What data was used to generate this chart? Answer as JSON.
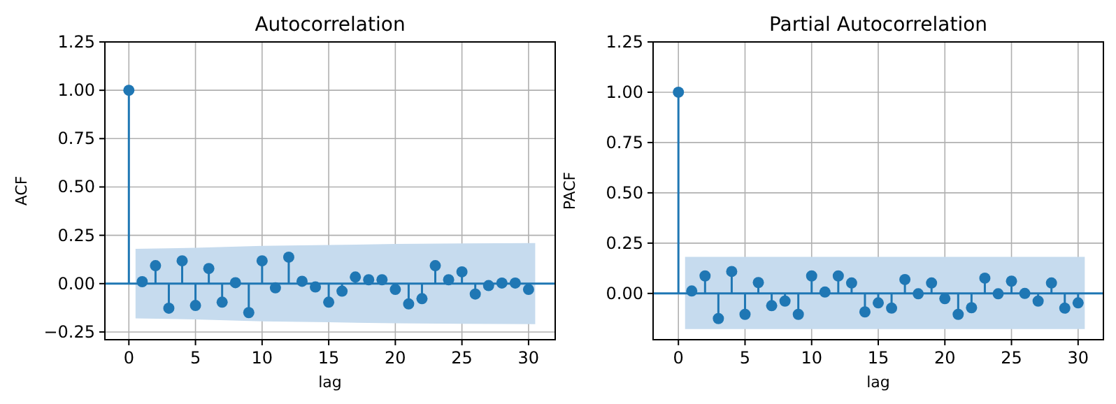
{
  "chart_data": [
    {
      "type": "lollipop",
      "title": "Autocorrelation",
      "xlabel": "lag",
      "ylabel": "ACF",
      "xlim": [
        -1.8,
        32
      ],
      "ylim": [
        -0.29,
        1.25
      ],
      "xticks": [
        0,
        5,
        10,
        15,
        20,
        25,
        30
      ],
      "yticks": [
        {
          "value": -0.25,
          "label": "−0.25"
        },
        {
          "value": 0,
          "label": "0.00"
        },
        {
          "value": 0.25,
          "label": "0.25"
        },
        {
          "value": 0.5,
          "label": "0.50"
        },
        {
          "value": 0.75,
          "label": "0.75"
        },
        {
          "value": 1,
          "label": "1.00"
        },
        {
          "value": 1.25,
          "label": "1.25"
        }
      ],
      "grid": true,
      "marker": "circle",
      "ref_lines": [
        {
          "axis": "y",
          "value": 0,
          "color": "#1f77b4"
        }
      ],
      "series": [
        {
          "type": "area",
          "color": "#c6dbee",
          "x": [
            0.5,
            5,
            10,
            15,
            20,
            25,
            30.5
          ],
          "values": [
            null,
            null,
            null,
            null,
            null,
            null,
            null
          ],
          "lower": [
            -0.18,
            -0.185,
            -0.195,
            -0.2,
            -0.205,
            -0.208,
            -0.21
          ],
          "upper": [
            0.18,
            0.185,
            0.195,
            0.2,
            0.205,
            0.208,
            0.21
          ]
        },
        {
          "color": "#1f77b4",
          "x": [
            0,
            1,
            2,
            3,
            4,
            5,
            6,
            7,
            8,
            9,
            10,
            11,
            12,
            13,
            14,
            15,
            16,
            17,
            18,
            19,
            20,
            21,
            22,
            23,
            24,
            25,
            26,
            27,
            28,
            29,
            30
          ],
          "values": [
            1.0,
            0.01,
            0.093,
            -0.127,
            0.118,
            -0.113,
            0.078,
            -0.096,
            0.005,
            -0.15,
            0.118,
            -0.022,
            0.137,
            0.012,
            -0.017,
            -0.096,
            -0.039,
            0.034,
            0.02,
            0.02,
            -0.03,
            -0.105,
            -0.078,
            0.093,
            0.02,
            0.061,
            -0.054,
            -0.01,
            0.003,
            0.003,
            -0.03
          ]
        }
      ]
    },
    {
      "type": "lollipop",
      "title": "Partial Autocorrelation",
      "xlabel": "lag",
      "ylabel": "PACF",
      "xlim": [
        -1.9,
        31.9
      ],
      "ylim": [
        -0.23,
        1.25
      ],
      "xticks": [
        0,
        5,
        10,
        15,
        20,
        25,
        30
      ],
      "yticks": [
        {
          "value": 0,
          "label": "0.00"
        },
        {
          "value": 0.25,
          "label": "0.25"
        },
        {
          "value": 0.5,
          "label": "0.50"
        },
        {
          "value": 0.75,
          "label": "0.75"
        },
        {
          "value": 1,
          "label": "1.00"
        },
        {
          "value": 1.25,
          "label": "1.25"
        }
      ],
      "grid": true,
      "marker": "circle",
      "ref_lines": [
        {
          "axis": "y",
          "value": 0,
          "color": "#1f77b4"
        }
      ],
      "series": [
        {
          "type": "area",
          "color": "#c6dbee",
          "x": [
            0.5,
            30.5
          ],
          "values": [
            null,
            null
          ],
          "lower": [
            -0.177,
            -0.177
          ],
          "upper": [
            0.182,
            0.182
          ]
        },
        {
          "color": "#1f77b4",
          "x": [
            0,
            1,
            2,
            3,
            4,
            5,
            6,
            7,
            8,
            9,
            10,
            11,
            12,
            13,
            14,
            15,
            16,
            17,
            18,
            19,
            20,
            21,
            22,
            23,
            24,
            25,
            26,
            27,
            28,
            29,
            30
          ],
          "values": [
            1.0,
            0.012,
            0.087,
            -0.125,
            0.109,
            -0.104,
            0.054,
            -0.061,
            -0.038,
            -0.104,
            0.087,
            0.007,
            0.087,
            0.052,
            -0.092,
            -0.047,
            -0.073,
            0.069,
            -0.002,
            0.052,
            -0.026,
            -0.104,
            -0.071,
            0.076,
            -0.002,
            0.061,
            0,
            -0.038,
            0.052,
            -0.073,
            -0.047
          ]
        }
      ]
    }
  ]
}
